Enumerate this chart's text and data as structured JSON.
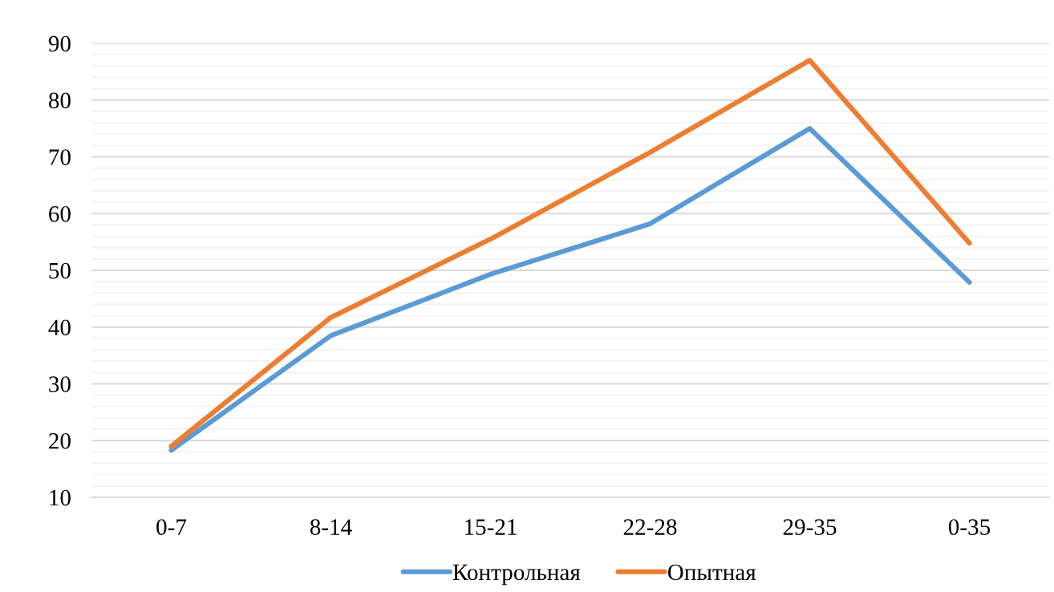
{
  "chart_data": {
    "type": "line",
    "categories": [
      "0-7",
      "8-14",
      "15-21",
      "22-28",
      "29-35",
      "0-35"
    ],
    "series": [
      {
        "name": "Контрольная",
        "color": "#5b9bd5",
        "values": [
          18.3,
          38.5,
          49.3,
          58.2,
          75.0,
          47.9
        ]
      },
      {
        "name": "Опытная",
        "color": "#ed7d31",
        "values": [
          19.0,
          41.7,
          55.5,
          70.8,
          87.0,
          54.8
        ]
      }
    ],
    "ylim": [
      10,
      90
    ],
    "yticks": [
      10,
      {
        "value": 12,
        "label": null
      },
      {
        "value": 14,
        "label": null
      },
      {
        "value": 16,
        "label": null
      },
      {
        "value": 18,
        "label": null
      },
      20,
      {
        "value": 22,
        "label": null
      },
      {
        "value": 24,
        "label": null
      },
      {
        "value": 26,
        "label": null
      },
      {
        "value": 28,
        "label": null
      },
      30,
      {
        "value": 32,
        "label": null
      },
      {
        "value": 34,
        "label": null
      },
      {
        "value": 36,
        "label": null
      },
      {
        "value": 38,
        "label": null
      },
      40,
      {
        "value": 42,
        "label": null
      },
      {
        "value": 44,
        "label": null
      },
      {
        "value": 46,
        "label": null
      },
      {
        "value": 48,
        "label": null
      },
      50,
      {
        "value": 52,
        "label": null
      },
      {
        "value": 54,
        "label": null
      },
      {
        "value": 56,
        "label": null
      },
      {
        "value": 58,
        "label": null
      },
      60,
      {
        "value": 62,
        "label": null
      },
      {
        "value": 64,
        "label": null
      },
      {
        "value": 66,
        "label": null
      },
      {
        "value": 68,
        "label": null
      },
      70,
      {
        "value": 72,
        "label": null
      },
      {
        "value": 74,
        "label": null
      },
      {
        "value": 76,
        "label": null
      },
      {
        "value": 78,
        "label": null
      },
      80,
      {
        "value": 82,
        "label": null
      },
      {
        "value": 84,
        "label": null
      },
      {
        "value": 86,
        "label": null
      },
      {
        "value": 88,
        "label": null
      },
      90
    ],
    "grid": "y",
    "legend": "bottom"
  }
}
